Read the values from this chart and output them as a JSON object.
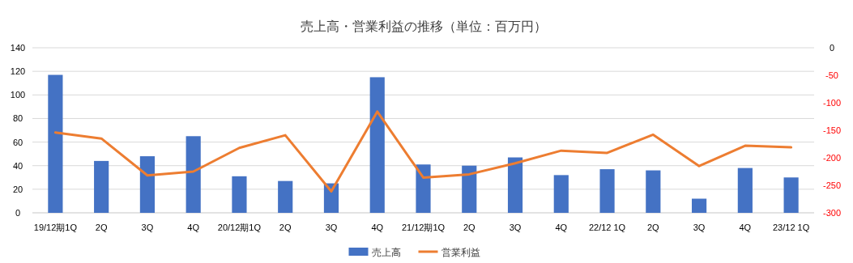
{
  "chart_data": {
    "type": "bar",
    "title": "売上高・営業利益の推移（単位：百万円）",
    "categories": [
      "19/12期1Q",
      "2Q",
      "3Q",
      "4Q",
      "20/12期1Q",
      "2Q",
      "3Q",
      "4Q",
      "21/12期1Q",
      "2Q",
      "3Q",
      "4Q",
      "22/12 1Q",
      "2Q",
      "3Q",
      "4Q",
      "23/12 1Q"
    ],
    "series": [
      {
        "name": "売上高",
        "color": "#4472c4",
        "values": [
          117,
          44,
          48,
          65,
          31,
          27,
          25,
          115,
          41,
          40,
          47,
          32,
          37,
          36,
          12,
          38,
          30
        ]
      },
      {
        "name": "営業利益",
        "type": "line",
        "axis": "y2",
        "color": "#ed7d31",
        "values": [
          -154,
          -165,
          -232,
          -225,
          -182,
          -159,
          -261,
          -116,
          -236,
          -230,
          -210,
          -187,
          -191,
          -158,
          -215,
          -178,
          -181
        ]
      }
    ],
    "ylim": [
      0,
      140
    ],
    "yticks": [
      0,
      20,
      40,
      60,
      80,
      100,
      120,
      140
    ],
    "y2lim": [
      -300,
      0
    ],
    "y2ticks": [
      0,
      -50,
      -100,
      -150,
      -200,
      -250,
      -300
    ],
    "grid": "y",
    "legend": "bottom"
  }
}
